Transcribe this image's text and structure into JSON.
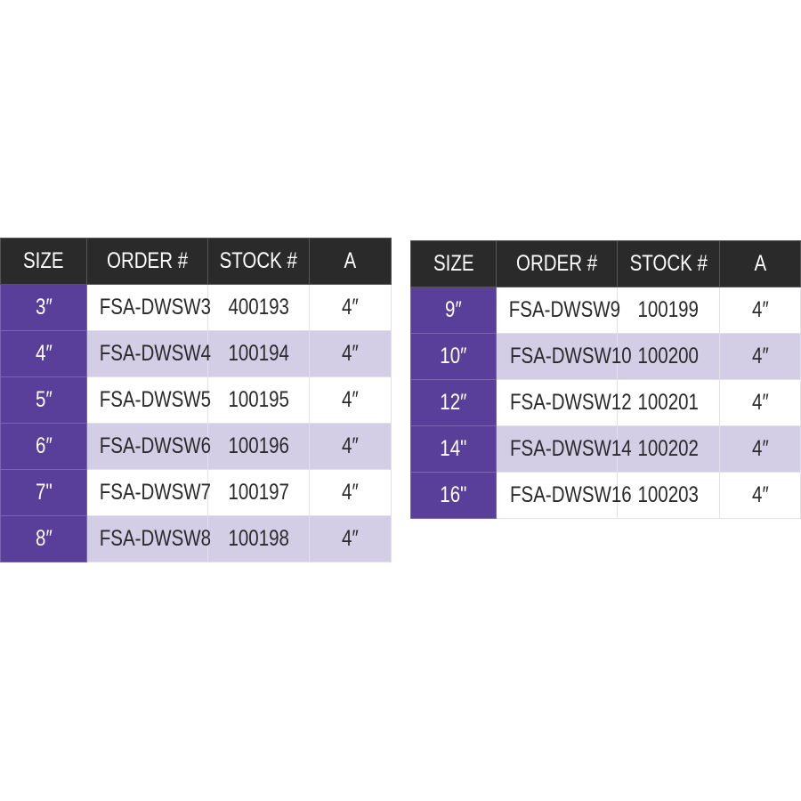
{
  "colors": {
    "header": "#2b2a2b",
    "size_column": "#5a3f9a",
    "alt_row": "#d3cde6"
  },
  "tables": [
    {
      "headers": [
        "SIZE",
        "ORDER #",
        "STOCK #",
        "A"
      ],
      "rows": [
        [
          "3″",
          "FSA-DWSW3",
          "400193",
          "4″"
        ],
        [
          "4″",
          "FSA-DWSW4",
          "100194",
          "4″"
        ],
        [
          "5″",
          "FSA-DWSW5",
          "100195",
          "4″"
        ],
        [
          "6″",
          "FSA-DWSW6",
          "100196",
          "4″"
        ],
        [
          "7\"",
          "FSA-DWSW7",
          "100197",
          "4″"
        ],
        [
          "8″",
          "FSA-DWSW8",
          "100198",
          "4″"
        ]
      ]
    },
    {
      "headers": [
        "SIZE",
        "ORDER #",
        "STOCK #",
        "A"
      ],
      "rows": [
        [
          "9″",
          "FSA-DWSW9",
          "100199",
          "4″"
        ],
        [
          "10″",
          "FSA-DWSW10",
          "100200",
          "4″"
        ],
        [
          "12″",
          "FSA-DWSW12",
          "100201",
          "4″"
        ],
        [
          "14\"",
          "FSA-DWSW14",
          "100202",
          "4″"
        ],
        [
          "16\"",
          "FSA-DWSW16",
          "100203",
          "4″"
        ]
      ]
    }
  ]
}
